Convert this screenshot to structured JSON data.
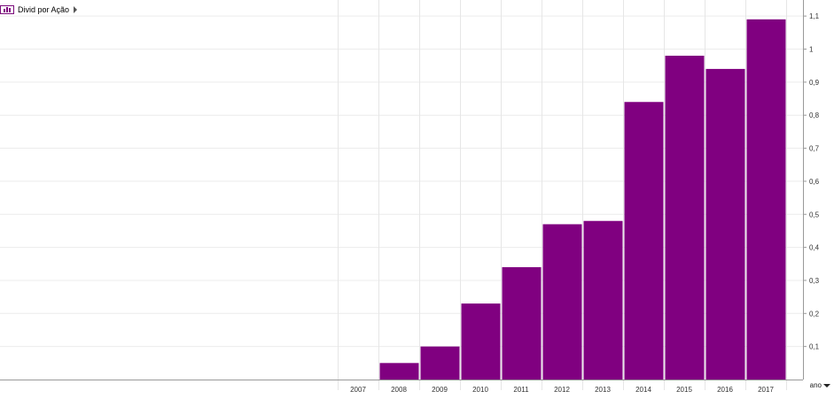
{
  "legend": {
    "label": "Divid por Ação",
    "color": "#800080"
  },
  "period_selector": {
    "label": "ano"
  },
  "chart_data": {
    "type": "bar",
    "categories": [
      "2007",
      "2008",
      "2009",
      "2010",
      "2011",
      "2012",
      "2013",
      "2014",
      "2015",
      "2016",
      "2017"
    ],
    "series": [
      {
        "name": "Divid por Ação",
        "color": "#800080",
        "values": [
          null,
          0.05,
          0.1,
          0.23,
          0.34,
          0.47,
          0.48,
          0.84,
          0.98,
          0.94,
          1.09
        ]
      }
    ],
    "yticks": [
      "0,1",
      "0,2",
      "0,3",
      "0,4",
      "0,5",
      "0,6",
      "0,7",
      "0,8",
      "0,9",
      "1",
      "1,1"
    ],
    "ylim": [
      0,
      1.1
    ],
    "grid": true,
    "legend_position": "top-left",
    "title": "",
    "xlabel": "",
    "ylabel": ""
  }
}
